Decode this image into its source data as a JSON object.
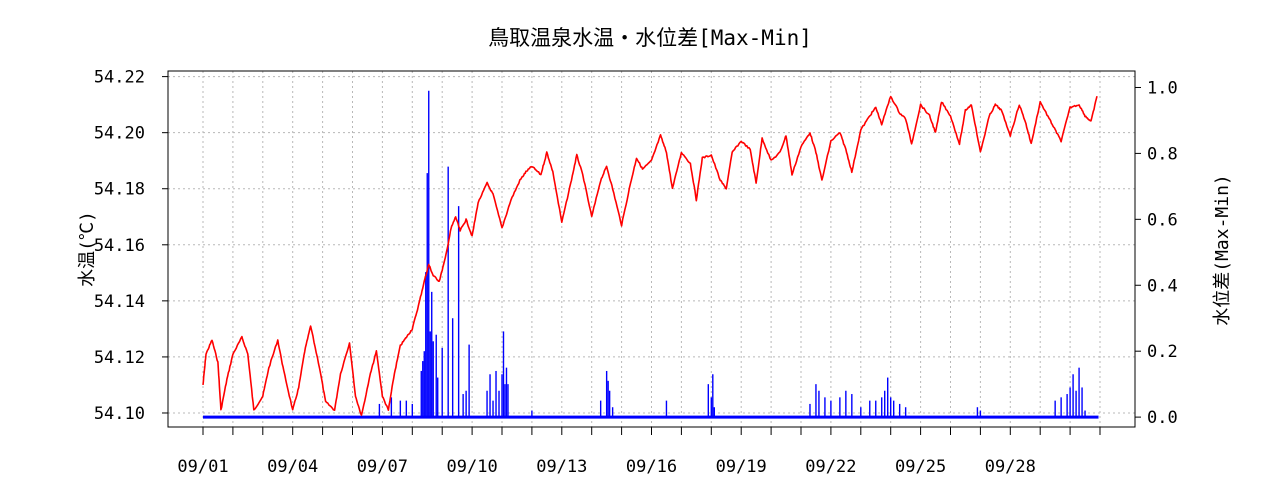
{
  "chart_data": {
    "type": "line",
    "title": "鳥取温泉水温・水位差[Max-Min]",
    "ylabel_left": "水温(℃)",
    "ylabel_right": "水位差(Max-Min)",
    "x_tick_labels": [
      "09/01",
      "09/04",
      "09/07",
      "09/10",
      "09/13",
      "09/16",
      "09/19",
      "09/22",
      "09/25",
      "09/28"
    ],
    "x_range_days": [
      0,
      30
    ],
    "ylim_left": [
      54.095,
      54.222
    ],
    "yticks_left": [
      "54.10",
      "54.12",
      "54.14",
      "54.16",
      "54.18",
      "54.20",
      "54.22"
    ],
    "ylim_right": [
      -0.03,
      1.05
    ],
    "yticks_right": [
      "0.0",
      "0.2",
      "0.4",
      "0.6",
      "0.8",
      "1.0"
    ],
    "grid": true,
    "series": [
      {
        "name": "水温",
        "axis": "left",
        "style": "line",
        "color": "#ff0000",
        "x_days": [
          0.0,
          0.1,
          0.3,
          0.5,
          0.6,
          0.8,
          1.0,
          1.3,
          1.5,
          1.7,
          2.0,
          2.2,
          2.5,
          2.7,
          3.0,
          3.2,
          3.4,
          3.6,
          3.9,
          4.1,
          4.4,
          4.6,
          4.9,
          5.1,
          5.3,
          5.6,
          5.8,
          6.0,
          6.2,
          6.4,
          6.6,
          6.8,
          7.0,
          7.2,
          7.4,
          7.55,
          7.7,
          7.9,
          8.1,
          8.3,
          8.45,
          8.6,
          8.8,
          9.0,
          9.2,
          9.5,
          9.7,
          10.0,
          10.3,
          10.6,
          10.8,
          11.0,
          11.3,
          11.5,
          11.7,
          12.0,
          12.3,
          12.5,
          12.7,
          13.0,
          13.3,
          13.5,
          13.7,
          14.0,
          14.3,
          14.5,
          14.7,
          15.0,
          15.3,
          15.5,
          15.7,
          16.0,
          16.3,
          16.5,
          16.7,
          17.0,
          17.3,
          17.5,
          17.7,
          18.0,
          18.3,
          18.5,
          18.7,
          19.0,
          19.3,
          19.5,
          19.7,
          20.0,
          20.3,
          20.5,
          20.7,
          21.0,
          21.3,
          21.5,
          21.7,
          22.0,
          22.3,
          22.5,
          22.7,
          23.0,
          23.3,
          23.5,
          23.7,
          24.0,
          24.3,
          24.5,
          24.7,
          25.0,
          25.3,
          25.5,
          25.7,
          26.0,
          26.3,
          26.5,
          26.7,
          27.0,
          27.3,
          27.5,
          27.7,
          28.0,
          28.3,
          28.5,
          28.7,
          29.0,
          29.3,
          29.5,
          29.7,
          29.9
        ],
        "values": [
          54.11,
          54.121,
          54.126,
          54.118,
          54.101,
          54.112,
          54.121,
          54.127,
          54.121,
          54.101,
          54.106,
          54.116,
          54.126,
          54.115,
          54.101,
          54.109,
          54.122,
          54.131,
          54.116,
          54.104,
          54.101,
          54.114,
          54.125,
          54.106,
          54.099,
          54.114,
          54.122,
          54.106,
          54.101,
          54.114,
          54.124,
          54.127,
          54.13,
          54.138,
          54.147,
          54.153,
          54.149,
          54.147,
          54.155,
          54.166,
          54.17,
          54.165,
          54.169,
          54.163,
          54.175,
          54.182,
          54.178,
          54.166,
          54.176,
          54.183,
          54.186,
          54.188,
          54.185,
          54.193,
          54.186,
          54.168,
          54.182,
          54.192,
          54.185,
          54.17,
          54.183,
          54.188,
          54.18,
          54.167,
          54.182,
          54.191,
          54.187,
          54.19,
          54.199,
          54.193,
          54.18,
          54.193,
          54.189,
          54.176,
          54.191,
          54.192,
          54.183,
          54.18,
          54.193,
          54.197,
          54.194,
          54.182,
          54.198,
          54.19,
          54.193,
          54.199,
          54.185,
          54.195,
          54.2,
          54.193,
          54.183,
          54.197,
          54.2,
          54.194,
          54.186,
          54.201,
          54.206,
          54.209,
          54.203,
          54.213,
          54.207,
          54.205,
          54.196,
          54.21,
          54.206,
          54.2,
          54.211,
          54.206,
          54.196,
          54.208,
          54.21,
          54.193,
          54.206,
          54.21,
          54.208,
          54.199,
          54.21,
          54.204,
          54.196,
          54.211,
          54.205,
          54.201,
          54.197,
          54.209,
          54.21,
          54.206,
          54.204,
          54.213
        ]
      },
      {
        "name": "水位差",
        "axis": "right",
        "style": "spikes",
        "color": "#0000ff",
        "x_days": [
          5.9,
          6.3,
          6.6,
          6.8,
          7.0,
          7.3,
          7.35,
          7.4,
          7.45,
          7.5,
          7.55,
          7.6,
          7.65,
          7.7,
          7.8,
          7.85,
          8.0,
          8.2,
          8.35,
          8.55,
          8.7,
          8.8,
          8.9,
          9.5,
          9.6,
          9.7,
          9.8,
          9.9,
          10.0,
          10.05,
          10.1,
          10.15,
          10.2,
          11.0,
          13.3,
          13.5,
          13.55,
          13.6,
          13.7,
          15.5,
          16.9,
          17.0,
          17.05,
          17.1,
          20.3,
          20.5,
          20.6,
          20.8,
          21.0,
          21.3,
          21.5,
          21.7,
          22.0,
          22.3,
          22.5,
          22.7,
          22.8,
          22.9,
          23.0,
          23.1,
          23.3,
          23.5,
          25.9,
          26.0,
          28.5,
          28.7,
          28.9,
          29.0,
          29.1,
          29.2,
          29.3,
          29.4,
          29.5
        ],
        "values": [
          0.04,
          0.06,
          0.05,
          0.05,
          0.04,
          0.14,
          0.17,
          0.2,
          0.44,
          0.74,
          0.99,
          0.26,
          0.38,
          0.23,
          0.25,
          0.12,
          0.21,
          0.76,
          0.3,
          0.64,
          0.07,
          0.08,
          0.22,
          0.08,
          0.13,
          0.05,
          0.14,
          0.08,
          0.13,
          0.26,
          0.1,
          0.15,
          0.1,
          0.02,
          0.05,
          0.14,
          0.11,
          0.08,
          0.03,
          0.05,
          0.1,
          0.06,
          0.13,
          0.03,
          0.04,
          0.1,
          0.08,
          0.06,
          0.05,
          0.06,
          0.08,
          0.07,
          0.03,
          0.05,
          0.05,
          0.06,
          0.08,
          0.12,
          0.06,
          0.05,
          0.04,
          0.03,
          0.03,
          0.02,
          0.05,
          0.06,
          0.07,
          0.09,
          0.13,
          0.08,
          0.15,
          0.09,
          0.02
        ]
      }
    ]
  }
}
